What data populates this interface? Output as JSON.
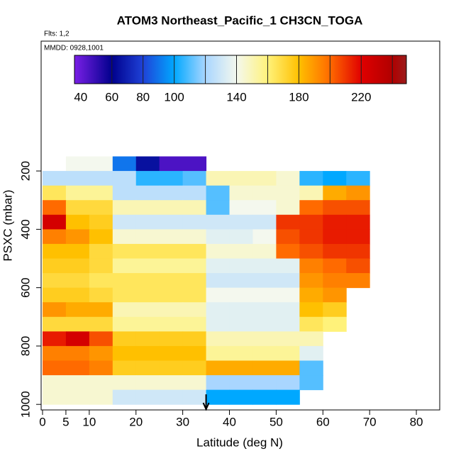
{
  "chart_data": {
    "type": "heatmap",
    "title": "ATOM3 Northeast_Pacific_1 CH3CN_TOGA",
    "subtitle": "Flts: 1,2",
    "annotation": "MMDD: 0928,1001",
    "xlabel": "Latitude (deg N)",
    "ylabel": "PSXC (mbar)",
    "xlim": [
      -0.3,
      85
    ],
    "ylim": [
      1019,
      -245
    ],
    "xticks": [
      0,
      5,
      10,
      20,
      30,
      40,
      50,
      60,
      70,
      80
    ],
    "yticks": [
      200,
      400,
      600,
      800,
      1000
    ],
    "x_edges": [
      0,
      5,
      10,
      15,
      20,
      25,
      30,
      35,
      40,
      45,
      50,
      55,
      60,
      65,
      70
    ],
    "y_edges": [
      150,
      200,
      250,
      300,
      350,
      400,
      450,
      500,
      550,
      600,
      650,
      700,
      750,
      800,
      850,
      900,
      950,
      1000
    ],
    "z": [
      [
        null,
        140,
        140,
        90,
        65,
        45,
        45,
        null,
        null,
        null,
        null,
        null,
        null,
        null
      ],
      [
        125,
        125,
        125,
        125,
        105,
        105,
        110,
        150,
        150,
        150,
        145,
        105,
        100,
        105
      ],
      [
        165,
        155,
        155,
        125,
        125,
        125,
        125,
        110,
        145,
        145,
        145,
        150,
        185,
        190
      ],
      [
        200,
        170,
        170,
        150,
        150,
        150,
        150,
        110,
        140,
        140,
        145,
        200,
        205,
        205
      ],
      [
        225,
        180,
        175,
        130,
        130,
        130,
        130,
        130,
        130,
        130,
        210,
        210,
        215,
        215
      ],
      [
        195,
        190,
        180,
        145,
        145,
        145,
        145,
        135,
        135,
        140,
        205,
        210,
        215,
        215
      ],
      [
        180,
        180,
        170,
        165,
        165,
        165,
        165,
        145,
        145,
        145,
        200,
        205,
        210,
        210
      ],
      [
        175,
        175,
        170,
        155,
        155,
        155,
        155,
        135,
        135,
        135,
        135,
        195,
        200,
        205
      ],
      [
        170,
        170,
        165,
        165,
        165,
        165,
        165,
        130,
        130,
        130,
        130,
        190,
        195,
        195
      ],
      [
        175,
        175,
        170,
        165,
        165,
        165,
        165,
        140,
        140,
        140,
        140,
        185,
        190,
        null
      ],
      [
        190,
        185,
        185,
        150,
        150,
        150,
        150,
        135,
        135,
        135,
        135,
        180,
        175,
        null
      ],
      [
        170,
        170,
        170,
        155,
        155,
        155,
        155,
        135,
        135,
        135,
        135,
        165,
        160,
        null
      ],
      [
        215,
        225,
        205,
        175,
        175,
        175,
        175,
        150,
        150,
        150,
        150,
        150,
        null,
        null
      ],
      [
        195,
        195,
        190,
        180,
        180,
        180,
        180,
        155,
        155,
        155,
        155,
        135,
        null,
        null
      ],
      [
        200,
        200,
        195,
        175,
        175,
        175,
        175,
        185,
        185,
        185,
        185,
        110,
        null,
        null
      ],
      [
        145,
        145,
        145,
        145,
        145,
        145,
        145,
        120,
        120,
        120,
        120,
        110,
        null,
        null
      ],
      [
        145,
        145,
        145,
        130,
        130,
        130,
        130,
        100,
        100,
        100,
        100,
        null,
        null,
        null
      ]
    ],
    "colorbar": {
      "lim": [
        36,
        249
      ],
      "ticks": [
        40,
        60,
        80,
        100,
        140,
        180,
        220
      ],
      "levels": [
        36,
        60,
        80,
        100,
        120,
        140,
        160,
        180,
        200,
        220,
        240,
        249
      ],
      "colors": [
        "#7a1fe6",
        "#00008c",
        "#1f42d8",
        "#00a8ff",
        "#a9d6ff",
        "#f4f8ee",
        "#fff27a",
        "#ffc000",
        "#ff6a00",
        "#e00000",
        "#b00000",
        "#9a1c1c"
      ]
    },
    "arrow_lat": 35
  }
}
